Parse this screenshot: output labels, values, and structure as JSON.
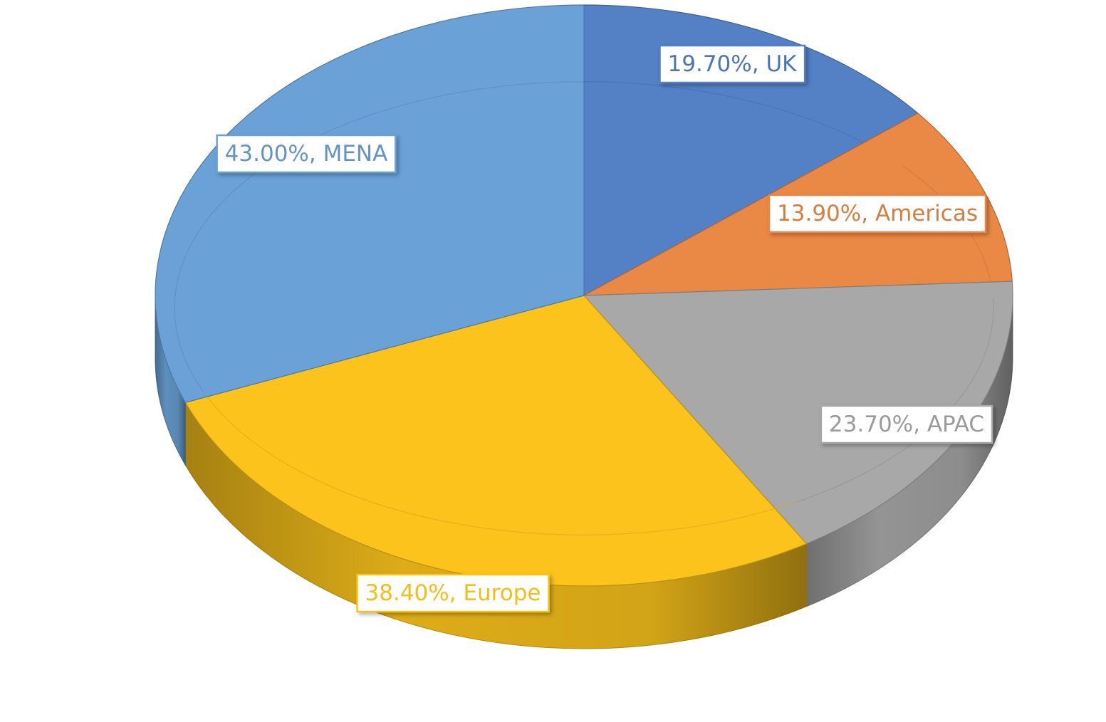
{
  "chart_data": {
    "type": "pie",
    "style": "3d",
    "title": "",
    "legend": "none",
    "slices": [
      {
        "category": "UK",
        "value": 19.7,
        "label": "19.70%, UK",
        "color": "#5480C6"
      },
      {
        "category": "Americas",
        "value": 13.9,
        "label": "13.90%, Americas",
        "color": "#EA8845"
      },
      {
        "category": "APAC",
        "value": 23.7,
        "label": "23.70%, APAC",
        "color": "#A8A8A8"
      },
      {
        "category": "Europe",
        "value": 38.4,
        "label": "38.40%, Europe",
        "color": "#FBC31B"
      },
      {
        "category": "MENA",
        "value": 43.0,
        "label": "43.00%, MENA",
        "color": "#6AA1D7"
      }
    ]
  }
}
